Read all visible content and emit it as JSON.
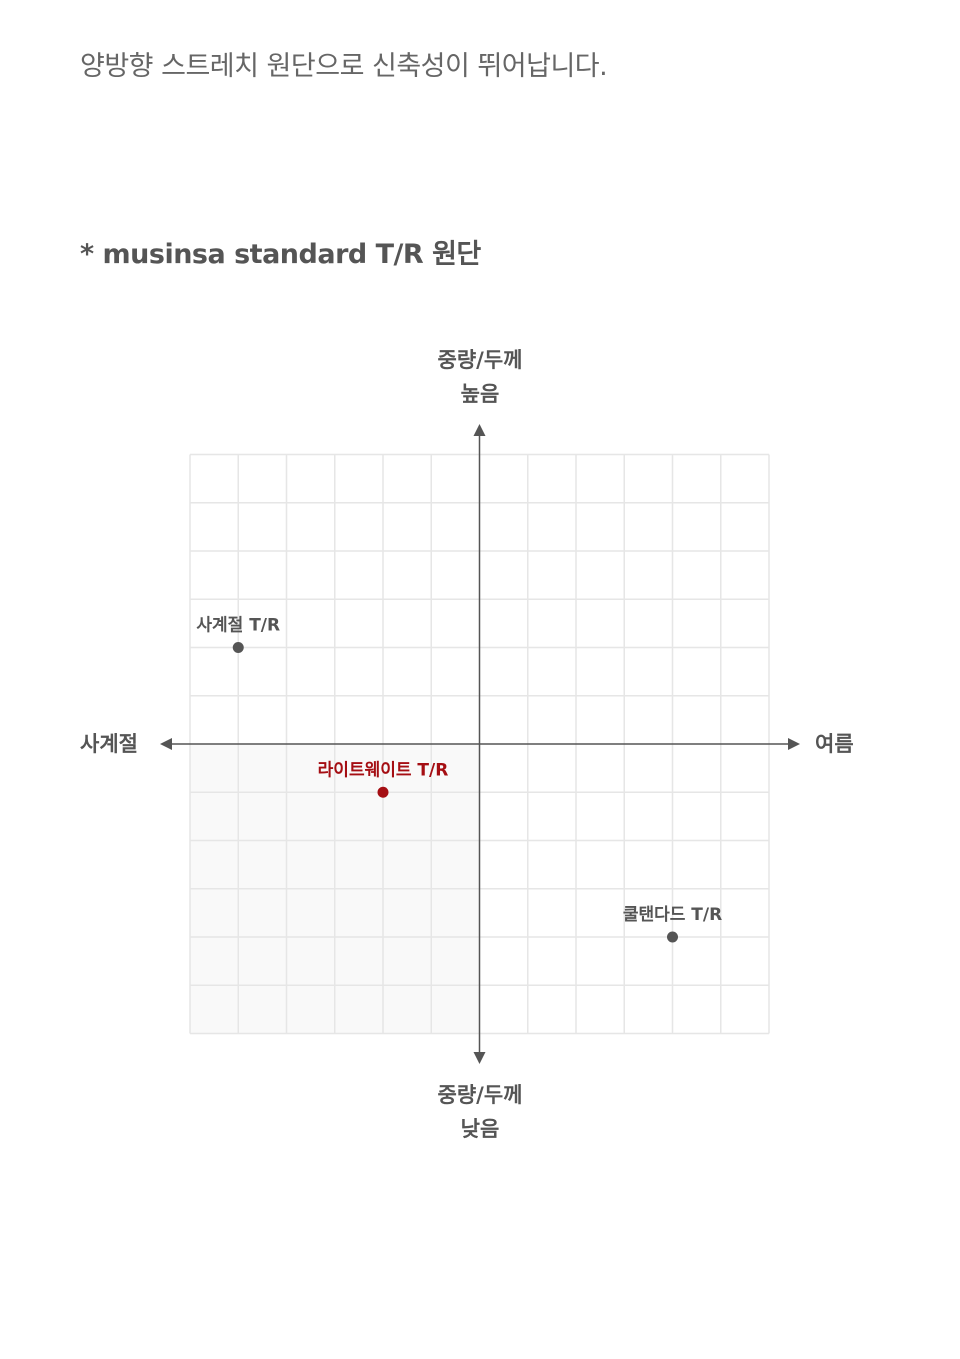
{
  "description": "양방향 스트레치 원단으로 신축성이 뛰어납니다.",
  "note": "* musinsa standard T/R 원단",
  "chart_data": {
    "type": "scatter",
    "axes": {
      "y_top": [
        "중량/두께",
        "높음"
      ],
      "y_bottom": [
        "중량/두께",
        "낮음"
      ],
      "x_left": "사계절",
      "x_right": "여름"
    },
    "xlim": [
      -6,
      6
    ],
    "ylim": [
      -6,
      6
    ],
    "grid": true,
    "highlight_quadrant": "bottom-left",
    "points": [
      {
        "label": "사계절 T/R",
        "x": -5,
        "y": 2,
        "color": "#555555"
      },
      {
        "label": "라이트웨이트 T/R",
        "x": -2,
        "y": -1,
        "color": "#a50e13"
      },
      {
        "label": "쿨탠다드 T/R",
        "x": 4,
        "y": -4,
        "color": "#555555"
      }
    ]
  },
  "colors": {
    "axis": "#555555",
    "grid": "#e6e6e6",
    "highlight_fill": "#f9f9f9",
    "accent": "#a50e13"
  }
}
